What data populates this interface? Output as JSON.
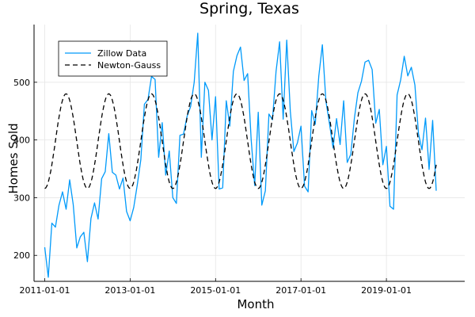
{
  "chart_data": {
    "type": "line",
    "title": "Spring, Texas",
    "xlabel": "Month",
    "ylabel": "Homes Sold",
    "xlim": [
      "2010-10-01",
      "2020-11-01"
    ],
    "ylim": [
      155,
      600
    ],
    "xticks": [
      "2011-01-01",
      "2013-01-01",
      "2015-01-01",
      "2017-01-01",
      "2019-01-01"
    ],
    "yticks": [
      200,
      300,
      400,
      500
    ],
    "grid": true,
    "legend_position": "top-left",
    "colors": {
      "zillow": "#009AFA",
      "fit": "#000000"
    },
    "fit_model": {
      "mean": 398,
      "amplitude": 82,
      "peak_month_offset": 6,
      "period_months": 12
    },
    "series": [
      {
        "name": "Zillow Data",
        "style": "solid",
        "start": "2011-01",
        "values": [
          214,
          162,
          256,
          249,
          287,
          310,
          280,
          331,
          288,
          213,
          232,
          240,
          189,
          264,
          291,
          263,
          333,
          345,
          411,
          344,
          339,
          315,
          334,
          276,
          260,
          283,
          322,
          366,
          462,
          470,
          510,
          505,
          370,
          430,
          339,
          381,
          300,
          290,
          408,
          410,
          441,
          458,
          500,
          585,
          370,
          500,
          486,
          400,
          475,
          315,
          317,
          468,
          424,
          519,
          546,
          561,
          503,
          515,
          402,
          321,
          448,
          287,
          312,
          445,
          435,
          519,
          570,
          436,
          573,
          450,
          380,
          395,
          424,
          320,
          310,
          451,
          427,
          511,
          565,
          467,
          428,
          386,
          437,
          392,
          468,
          361,
          375,
          437,
          482,
          502,
          535,
          538,
          522,
          429,
          453,
          357,
          389,
          285,
          280,
          478,
          504,
          545,
          511,
          526,
          495,
          411,
          383,
          438,
          349,
          434,
          312
        ]
      },
      {
        "name": "Newton-Gauss",
        "style": "dashed",
        "start": "2011-01"
      }
    ]
  }
}
